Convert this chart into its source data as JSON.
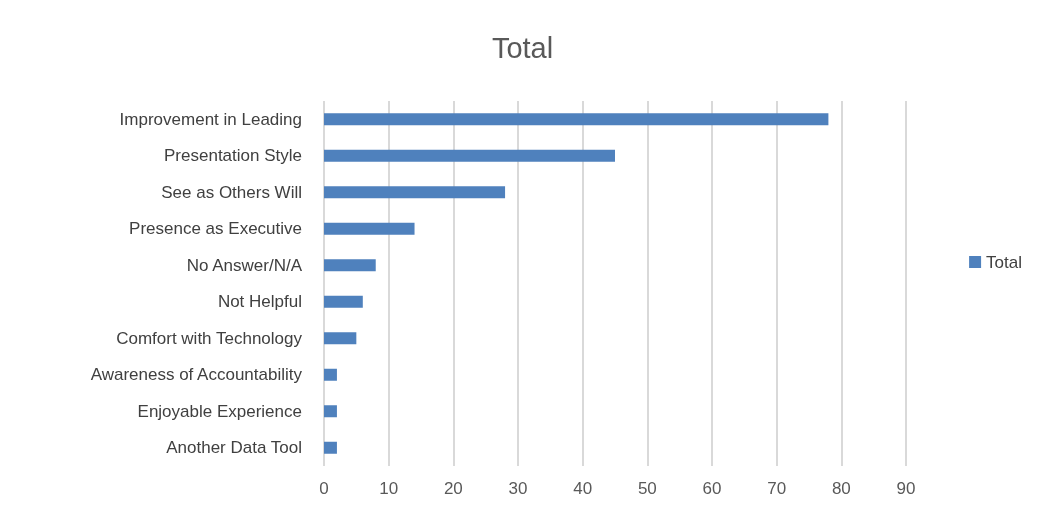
{
  "chart_data": {
    "type": "bar",
    "orientation": "horizontal",
    "title": "Total",
    "categories": [
      "Improvement in Leading",
      "Presentation Style",
      "See as Others Will",
      "Presence as Executive",
      "No Answer/N/A",
      "Not Helpful",
      "Comfort with Technology",
      "Awareness of Accountability",
      "Enjoyable Experience",
      "Another Data Tool"
    ],
    "series": [
      {
        "name": "Total",
        "color": "#4f81bd",
        "values": [
          78,
          45,
          28,
          14,
          8,
          6,
          5,
          2,
          2,
          2
        ]
      }
    ],
    "xlim": [
      0,
      90
    ],
    "xticks": [
      0,
      10,
      20,
      30,
      40,
      50,
      60,
      70,
      80,
      90
    ],
    "grid": "x",
    "legend": "right"
  }
}
